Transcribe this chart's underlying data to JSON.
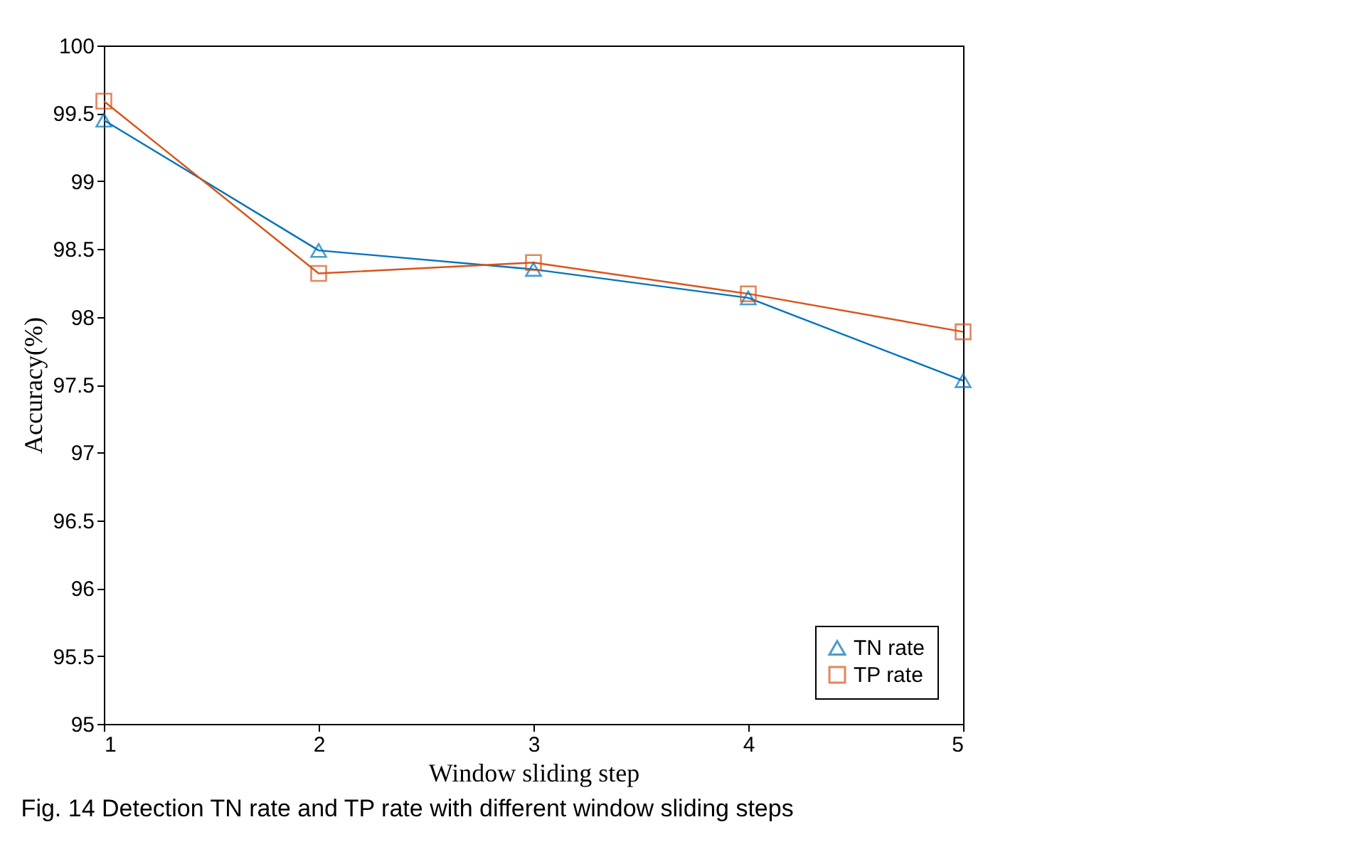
{
  "chart_data": {
    "type": "line",
    "xlabel": "Window sliding step",
    "ylabel": "Accuracy(%)",
    "x": [
      1,
      2,
      3,
      4,
      5
    ],
    "series": [
      {
        "name": "TN rate",
        "color": "#0072bd",
        "marker": "triangle",
        "values": [
          99.45,
          98.49,
          98.35,
          98.14,
          97.53
        ]
      },
      {
        "name": "TP rate",
        "color": "#d95319",
        "marker": "square",
        "values": [
          99.59,
          98.32,
          98.4,
          98.17,
          97.89
        ]
      }
    ],
    "xlim": [
      1,
      5
    ],
    "xticks": [
      1,
      2,
      3,
      4,
      5
    ],
    "ylim": [
      95,
      100
    ],
    "yticks": [
      95,
      95.5,
      96,
      96.5,
      97,
      97.5,
      98,
      98.5,
      99,
      99.5,
      100
    ],
    "grid": false,
    "legend": "bottom right",
    "line_style": "solid",
    "annotations": [
      "Fig. 14  Detection TN rate and TP rate with different window sliding steps"
    ]
  }
}
